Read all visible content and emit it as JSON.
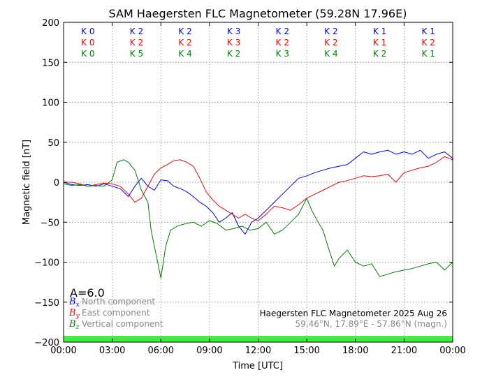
{
  "chart_data": {
    "type": "line",
    "title": "SAM Haegersten FLC Magnetometer (59.28N 17.96E)",
    "xlabel": "Time [UTC]",
    "ylabel": "Magnetic field [nT]",
    "xlim": [
      0,
      24
    ],
    "ylim": [
      -200,
      200
    ],
    "x_ticks": [
      0,
      3,
      6,
      9,
      12,
      15,
      18,
      21,
      24
    ],
    "x_tick_labels": [
      "00:00",
      "03:00",
      "06:00",
      "09:00",
      "12:00",
      "15:00",
      "18:00",
      "21:00",
      "00:00"
    ],
    "y_ticks": [
      -200,
      -150,
      -100,
      -50,
      0,
      50,
      100,
      150,
      200
    ],
    "y_tick_labels": [
      "−200",
      "−150",
      "−100",
      "−50",
      "0",
      "50",
      "100",
      "150",
      "200"
    ],
    "grid": true,
    "series": [
      {
        "name": "North component",
        "symbol": "B",
        "subscript": "x",
        "color": "#0000ff",
        "x": [
          0,
          0.5,
          1,
          1.5,
          2,
          2.5,
          3,
          3.5,
          4,
          4.4,
          4.8,
          5.2,
          5.6,
          6,
          6.4,
          6.8,
          7.2,
          7.6,
          8,
          8.4,
          8.8,
          9.2,
          9.6,
          10,
          10.4,
          10.8,
          11.2,
          11.6,
          12,
          12.5,
          13,
          13.5,
          14,
          14.5,
          15,
          15.5,
          16,
          16.5,
          17,
          17.5,
          18,
          18.5,
          19,
          19.5,
          20,
          20.5,
          21,
          21.5,
          22,
          22.5,
          23,
          23.5,
          24
        ],
        "y": [
          0,
          -3,
          -4,
          -3,
          -5,
          -2,
          -5,
          -8,
          -18,
          -5,
          5,
          -5,
          -10,
          3,
          2,
          -5,
          -8,
          -12,
          -18,
          -25,
          -30,
          -38,
          -50,
          -45,
          -38,
          -55,
          -65,
          -50,
          -45,
          -35,
          -25,
          -15,
          -5,
          5,
          8,
          12,
          15,
          18,
          20,
          22,
          30,
          38,
          35,
          38,
          40,
          35,
          38,
          35,
          40,
          30,
          35,
          38,
          30
        ]
      },
      {
        "name": "East component",
        "symbol": "B",
        "subscript": "y",
        "color": "#ff0000",
        "x": [
          0,
          0.5,
          1,
          1.5,
          2,
          2.5,
          3,
          3.5,
          4,
          4.4,
          4.8,
          5.2,
          5.6,
          6,
          6.4,
          6.8,
          7.2,
          7.6,
          8,
          8.4,
          8.8,
          9.2,
          9.6,
          10,
          10.4,
          10.8,
          11.2,
          11.6,
          12,
          12.5,
          13,
          13.5,
          14,
          14.5,
          15,
          15.5,
          16,
          16.5,
          17,
          17.5,
          18,
          18.5,
          19,
          19.5,
          20,
          20.5,
          21,
          21.5,
          22,
          22.5,
          23,
          23.5,
          24
        ],
        "y": [
          0,
          0,
          -2,
          -5,
          -3,
          -1,
          -2,
          -5,
          -15,
          -25,
          -20,
          -5,
          10,
          18,
          22,
          27,
          28,
          25,
          20,
          5,
          -12,
          -22,
          -30,
          -35,
          -40,
          -45,
          -40,
          -45,
          -48,
          -40,
          -30,
          -32,
          -35,
          -28,
          -20,
          -15,
          -10,
          -5,
          0,
          2,
          5,
          8,
          7,
          8,
          10,
          0,
          12,
          15,
          18,
          20,
          25,
          32,
          28
        ]
      },
      {
        "name": "Vertical component",
        "symbol": "B",
        "subscript": "z",
        "color": "#007f00",
        "x": [
          0,
          0.5,
          1,
          1.5,
          2,
          2.5,
          3,
          3.3,
          3.7,
          4,
          4.4,
          4.8,
          5.2,
          5.4,
          5.7,
          6,
          6.3,
          6.6,
          7,
          7.5,
          8,
          8.5,
          9,
          9.5,
          10,
          10.5,
          11,
          11.5,
          12,
          12.5,
          13,
          13.5,
          14,
          14.5,
          15,
          15.3,
          15.7,
          16,
          16.3,
          16.7,
          17,
          17.5,
          18,
          18.5,
          19,
          19.5,
          20,
          20.5,
          21,
          21.5,
          22,
          22.5,
          23,
          23.5,
          24
        ],
        "y": [
          -2,
          -4,
          -3,
          -5,
          -4,
          -5,
          3,
          25,
          28,
          25,
          15,
          -10,
          -25,
          -60,
          -90,
          -120,
          -80,
          -60,
          -55,
          -52,
          -50,
          -55,
          -48,
          -52,
          -60,
          -58,
          -55,
          -60,
          -58,
          -50,
          -65,
          -60,
          -50,
          -40,
          -20,
          -35,
          -50,
          -60,
          -80,
          -105,
          -95,
          -85,
          -100,
          -105,
          -102,
          -118,
          -115,
          -112,
          -110,
          -108,
          -105,
          -102,
          -100,
          -110,
          -100
        ]
      }
    ],
    "k_index_rows": [
      {
        "color": "#0000ff",
        "values": [
          "K 0",
          "K 2",
          "K 2",
          "K 3",
          "K 2",
          "K 2",
          "K 1",
          "K 1"
        ]
      },
      {
        "color": "#ff0000",
        "values": [
          "K 0",
          "K 2",
          "K 2",
          "K 3",
          "K 2",
          "K 2",
          "K 1",
          "K 2"
        ]
      },
      {
        "color": "#007f00",
        "values": [
          "K 0",
          "K 5",
          "K 4",
          "K 2",
          "K 3",
          "K 4",
          "K 2",
          "K 1"
        ]
      }
    ],
    "a_index": "A=6.0",
    "info_title": "Haegersten FLC Magnetometer 2025 Aug 26",
    "info_coords": "59.46°N, 17.89°E - 57.86°N (magn.)",
    "status_bar_color": "#3cf03c",
    "legend_placement": "bottom-left"
  }
}
